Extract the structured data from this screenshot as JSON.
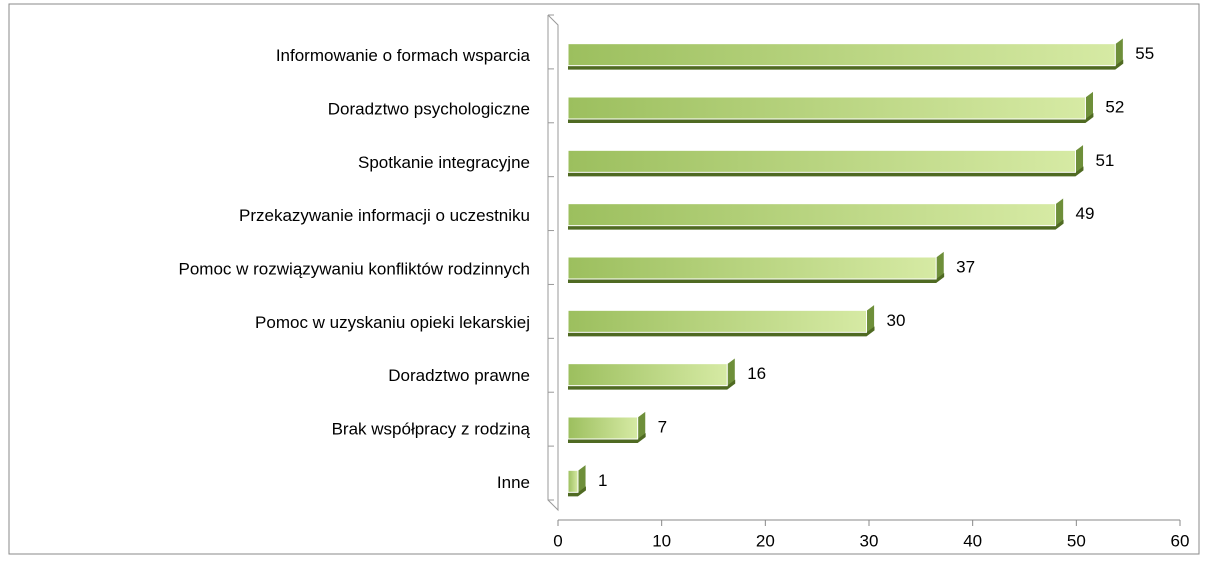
{
  "chart_data": {
    "type": "bar",
    "orientation": "horizontal",
    "categories": [
      "Informowanie o formach wsparcia",
      "Doradztwo psychologiczne",
      "Spotkanie integracyjne",
      "Przekazywanie informacji o uczestniku",
      "Pomoc w rozwiązywaniu konfliktów rodzinnych",
      "Pomoc w uzyskaniu opieki lekarskiej",
      "Doradztwo prawne",
      "Brak współpracy z rodziną",
      "Inne"
    ],
    "values": [
      55,
      52,
      51,
      49,
      37,
      30,
      16,
      7,
      1
    ],
    "color": "#a8c872",
    "xlim": [
      0,
      60
    ],
    "xticks": [
      0,
      10,
      20,
      30,
      40,
      50,
      60
    ]
  }
}
